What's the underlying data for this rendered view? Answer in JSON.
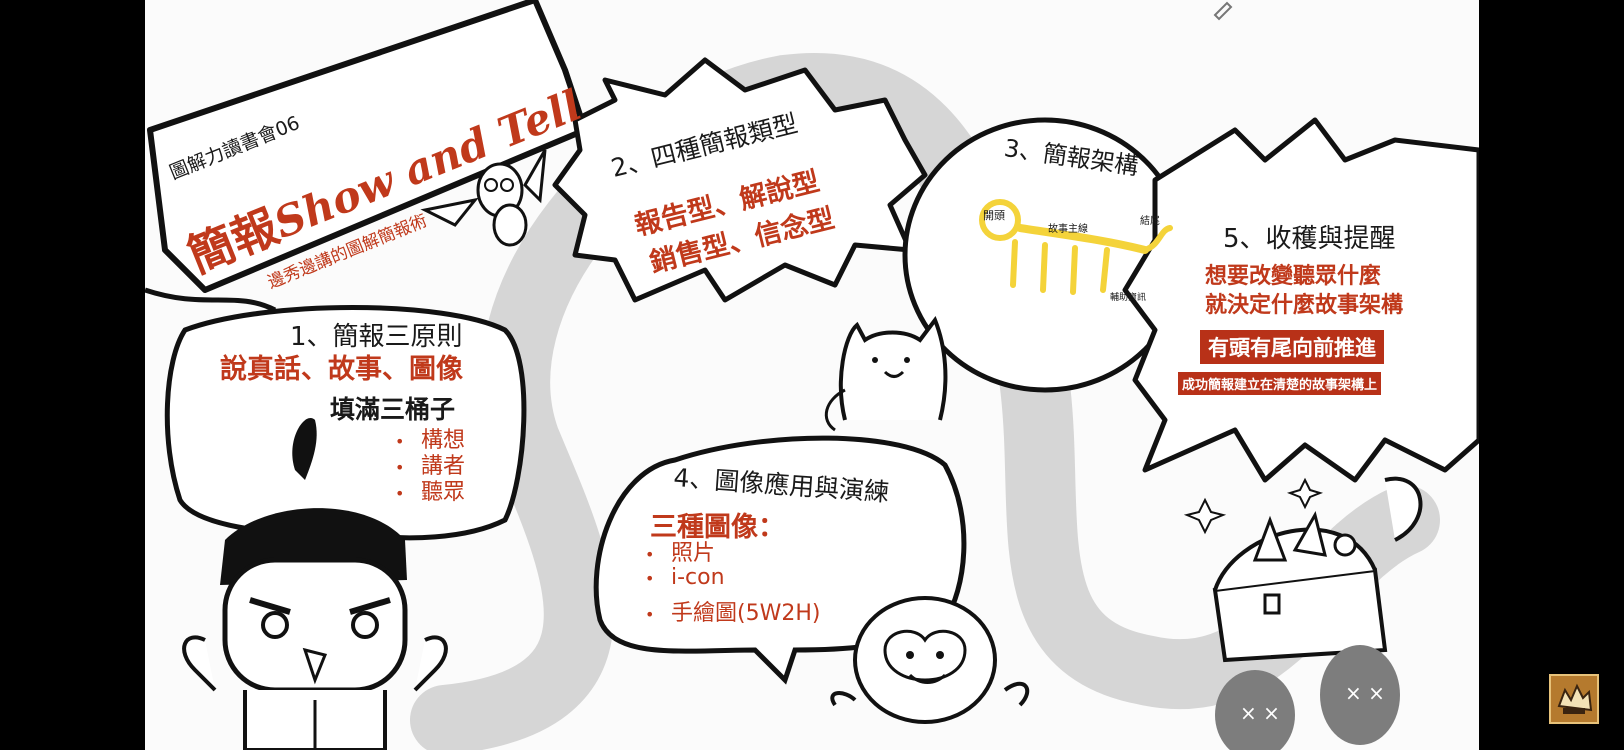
{
  "banner": {
    "series": "圖解力讀書會06",
    "title_cn": "簡報",
    "title_en": "Show and Tell",
    "subtitle": "邊秀邊講的圖解簡報術"
  },
  "section1": {
    "heading": "1、簡報三原則",
    "principles": "說真話、故事、圖像",
    "buckets_title": "填滿三桶子",
    "buckets": [
      "構想",
      "講者",
      "聽眾"
    ]
  },
  "section2": {
    "heading": "2、四種簡報類型",
    "line1": "報告型、解說型",
    "line2": "銷售型、信念型"
  },
  "section3": {
    "heading": "3、簡報架構",
    "diagram": {
      "start": "開頭",
      "storyline": "故事主線",
      "end": "結尾",
      "support": "輔助資訊"
    }
  },
  "section4": {
    "heading": "4、圖像應用與演練",
    "subheading": "三種圖像：",
    "items": [
      "照片",
      "i-con",
      "手繪圖(5W2H)"
    ]
  },
  "section5": {
    "heading": "5、收穫與提醒",
    "line1": "想要改變聽眾什麼",
    "line2": "就決定什麼故事架構",
    "badge_main": "有頭有尾向前推進",
    "badge_sub": "成功簡報建立在清楚的故事架構上"
  },
  "colors": {
    "accent_red": "#c0391b",
    "badge_red": "#b83118",
    "highlight_yellow": "#f4d33a",
    "path_gray": "#c8c8c8",
    "ink": "#1a1a1a"
  },
  "icons": [
    "owl-icon",
    "dog-icon",
    "monkey-icon",
    "samurai-icon",
    "treasure-chest-icon",
    "pencil-icon",
    "channel-logo-icon"
  ]
}
